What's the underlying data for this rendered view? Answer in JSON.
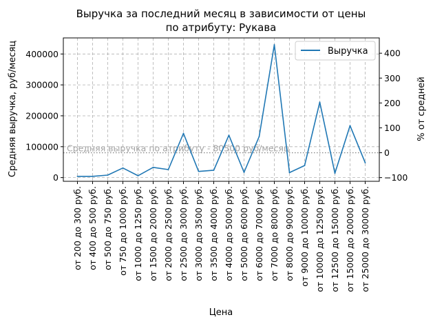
{
  "chart_data": {
    "type": "line",
    "title": "Выручка за последний месяц в зависимости от цены\nпо атрибуту: Рукава",
    "xlabel": "Цена",
    "ylabel": "Средняя выручка, руб/месяц",
    "y2label": "% от средней",
    "categories": [
      "от 200 до 300 руб.",
      "от 400 до 500 руб.",
      "от 500 до 750 руб.",
      "от 750 до 1000 руб.",
      "от 1000 до 1250 руб.",
      "от 1500 до 2000 руб.",
      "от 2000 до 2500 руб.",
      "от 2500 до 3000 руб.",
      "от 3000 до 3500 руб.",
      "от 3500 до 4000 руб.",
      "от 4000 до 5000 руб.",
      "от 5000 до 6000 руб.",
      "от 6000 до 7000 руб.",
      "от 7000 до 8000 руб.",
      "от 8000 до 9000 руб.",
      "от 9000 до 10000 руб.",
      "от 10000 до 12500 руб.",
      "от 12500 до 15000 руб.",
      "от 15000 до 20000 руб.",
      "от 25000 до 30000 руб."
    ],
    "series": [
      {
        "name": "Выручка",
        "color": "#1f77b4",
        "values": [
          4000,
          4000,
          8000,
          31000,
          6000,
          33000,
          26000,
          143000,
          20000,
          24000,
          137000,
          17000,
          133000,
          430000,
          16000,
          39000,
          244000,
          14000,
          168000,
          48000
        ]
      }
    ],
    "mean_line": {
      "value": 80500,
      "label": "Средняя выручка по атрибуту - 80500 руб/месяц",
      "color": "#888888"
    },
    "ylim": [
      -12000,
      452000
    ],
    "yticks": [
      0,
      100000,
      200000,
      300000,
      400000
    ],
    "y2ticks": [
      -100,
      0,
      100,
      200,
      300,
      400
    ],
    "grid": true,
    "legend": "top-right"
  }
}
